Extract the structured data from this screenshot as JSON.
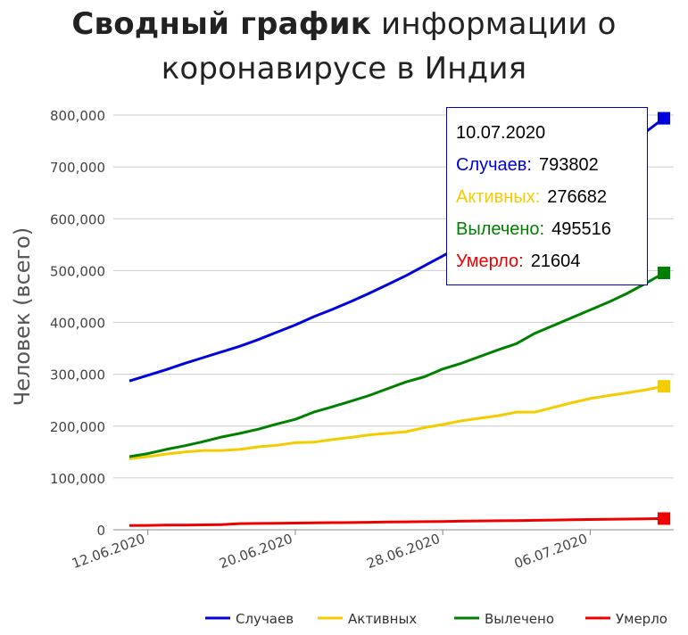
{
  "title": {
    "bold": "Сводный график",
    "rest": "информации о коронавирусе в Индия"
  },
  "colors": {
    "cases": "#0000dd",
    "active": "#f5cc00",
    "recovered": "#008000",
    "deaths": "#ee0000",
    "grid": "#cccccc",
    "axis_text": "#444444"
  },
  "tooltip": {
    "date": "10.07.2020",
    "rows": [
      {
        "label": "Случаев:",
        "value": "793802",
        "color": "#0000dd"
      },
      {
        "label": "Активных:",
        "value": "276682",
        "color": "#f5cc00"
      },
      {
        "label": "Вылечено:",
        "value": "495516",
        "color": "#008000"
      },
      {
        "label": "Умерло:",
        "value": "21604",
        "color": "#ee0000"
      }
    ]
  },
  "legend": [
    {
      "label": "Случаев",
      "color": "#0000dd"
    },
    {
      "label": "Активных",
      "color": "#f5cc00"
    },
    {
      "label": "Вылечено",
      "color": "#008000"
    },
    {
      "label": "Умерло",
      "color": "#ee0000"
    }
  ],
  "chart_data": {
    "type": "line",
    "title": "Сводный график информации о коронавирусе в Индия",
    "xlabel": "",
    "ylabel": "Человек (всего)",
    "ylim": [
      0,
      800000
    ],
    "yticks": [
      0,
      100000,
      200000,
      300000,
      400000,
      500000,
      600000,
      700000,
      800000
    ],
    "ytick_labels": [
      "0",
      "100,000",
      "200,000",
      "300,000",
      "400,000",
      "500,000",
      "600,000",
      "700,000",
      "800,000"
    ],
    "xtick_labels": [
      "12.06.2020",
      "20.06.2020",
      "28.06.2020",
      "06.07.2020"
    ],
    "xtick_index": [
      1,
      9,
      17,
      25
    ],
    "grid": true,
    "legend_position": "bottom",
    "x": [
      "11.06.2020",
      "12.06.2020",
      "13.06.2020",
      "14.06.2020",
      "15.06.2020",
      "16.06.2020",
      "17.06.2020",
      "18.06.2020",
      "19.06.2020",
      "20.06.2020",
      "21.06.2020",
      "22.06.2020",
      "23.06.2020",
      "24.06.2020",
      "25.06.2020",
      "26.06.2020",
      "27.06.2020",
      "28.06.2020",
      "29.06.2020",
      "30.06.2020",
      "01.07.2020",
      "02.07.2020",
      "03.07.2020",
      "04.07.2020",
      "05.07.2020",
      "06.07.2020",
      "07.07.2020",
      "08.07.2020",
      "09.07.2020",
      "10.07.2020"
    ],
    "series": [
      {
        "name": "Случаев",
        "color": "#0000dd",
        "values": [
          287000,
          298000,
          309000,
          321000,
          332000,
          343000,
          354000,
          367000,
          381000,
          395000,
          411000,
          425000,
          440000,
          456000,
          473000,
          490000,
          509000,
          528000,
          548000,
          566000,
          585000,
          605000,
          627000,
          648000,
          673000,
          698000,
          720000,
          743000,
          767000,
          793802
        ]
      },
      {
        "name": "Активных",
        "color": "#f5cc00",
        "values": [
          137000,
          141000,
          146000,
          150000,
          153000,
          153000,
          155000,
          160000,
          163000,
          168000,
          169000,
          174000,
          178000,
          183000,
          186000,
          189000,
          197000,
          203000,
          210000,
          215000,
          220000,
          227000,
          227000,
          236000,
          245000,
          253000,
          259000,
          264000,
          270000,
          276682
        ]
      },
      {
        "name": "Вылечено",
        "color": "#008000",
        "values": [
          141000,
          147000,
          155000,
          162000,
          170000,
          179000,
          186000,
          194000,
          204000,
          213000,
          227000,
          237000,
          248000,
          259000,
          272000,
          285000,
          295000,
          310000,
          321000,
          334000,
          347000,
          359000,
          379000,
          394000,
          409000,
          424000,
          439000,
          456000,
          475000,
          495516
        ]
      },
      {
        "name": "Умерло",
        "color": "#ee0000",
        "values": [
          8100,
          8500,
          8900,
          9200,
          9500,
          10000,
          11900,
          12200,
          12600,
          12900,
          13300,
          13700,
          14000,
          14500,
          15000,
          15300,
          15700,
          16000,
          16500,
          17000,
          17400,
          17800,
          18200,
          18700,
          19200,
          19700,
          20200,
          20600,
          21100,
          21604
        ]
      }
    ]
  }
}
